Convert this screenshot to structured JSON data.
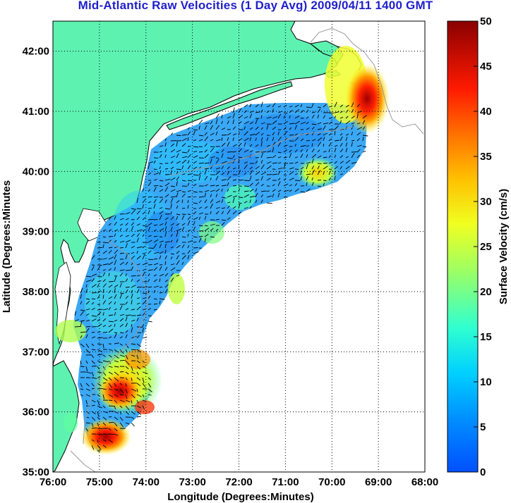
{
  "title": "Mid-Atlantic Raw Velocities (1 Day Avg) 2009/04/11 1400 GMT",
  "map": {
    "xlabel": "Longitude (Degrees:Minutes)",
    "ylabel": "Latitude (Degrees:Minutes",
    "x_ticks": [
      "76:00",
      "75:00",
      "74:00",
      "73:00",
      "72:00",
      "71:00",
      "70:00",
      "69:00",
      "68:00"
    ],
    "y_ticks": [
      "42:00",
      "41:00",
      "40:00",
      "39:00",
      "38:00",
      "37:00",
      "36:00",
      "35:00"
    ],
    "lon_range": [
      -76,
      -68
    ],
    "lat_range": [
      35,
      42.5
    ],
    "land_color": "#5ef2b0",
    "grid": "dotted"
  },
  "colorbar": {
    "label": "Surface Velocity (cm/s)",
    "ticks": [
      "50",
      "45",
      "40",
      "35",
      "30",
      "25",
      "20",
      "15",
      "10",
      "5",
      "0"
    ],
    "range": [
      0,
      50
    ],
    "colormap": "jet"
  }
}
